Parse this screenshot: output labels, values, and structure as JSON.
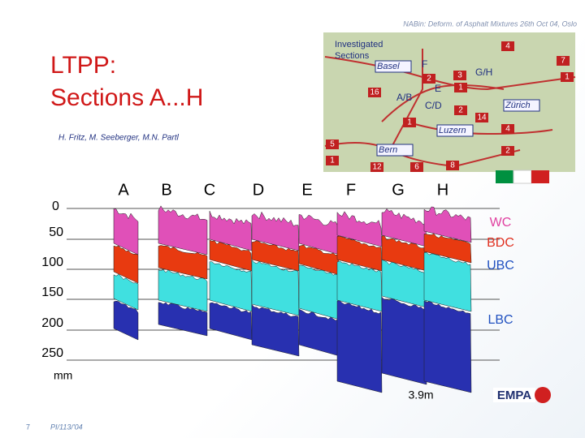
{
  "header": "NABin: Deform. of Asphalt Mixtures 26th Oct 04, Oslo",
  "title": [
    "LTPP:",
    "Sections A...H"
  ],
  "authors": "H. Fritz, M. Seeberger, M.N. Partl",
  "map": {
    "legend": [
      "Investigated",
      "Sections"
    ],
    "cities": [
      "Basel",
      "Zürich",
      "Luzern",
      "Bern"
    ],
    "sections": [
      "F",
      "G/H",
      "E",
      "A/B",
      "C/D"
    ],
    "roads": [
      "4",
      "7",
      "1",
      "3",
      "2",
      "16",
      "1",
      "2",
      "14",
      "1",
      "4",
      "5",
      "2",
      "1",
      "12",
      "6",
      "8"
    ]
  },
  "profile": {
    "sections": [
      "A",
      "B",
      "C",
      "D",
      "E",
      "F",
      "G",
      "H"
    ],
    "depths": [
      "0",
      "50",
      "100",
      "150",
      "200",
      "250"
    ],
    "unit": "mm",
    "layers": [
      "WC",
      "BDC",
      "UBC",
      "LBC"
    ],
    "width": "3.9m"
  },
  "footer": {
    "page": "7",
    "ref": "PI/113/'04",
    "logo": "EMPA"
  }
}
